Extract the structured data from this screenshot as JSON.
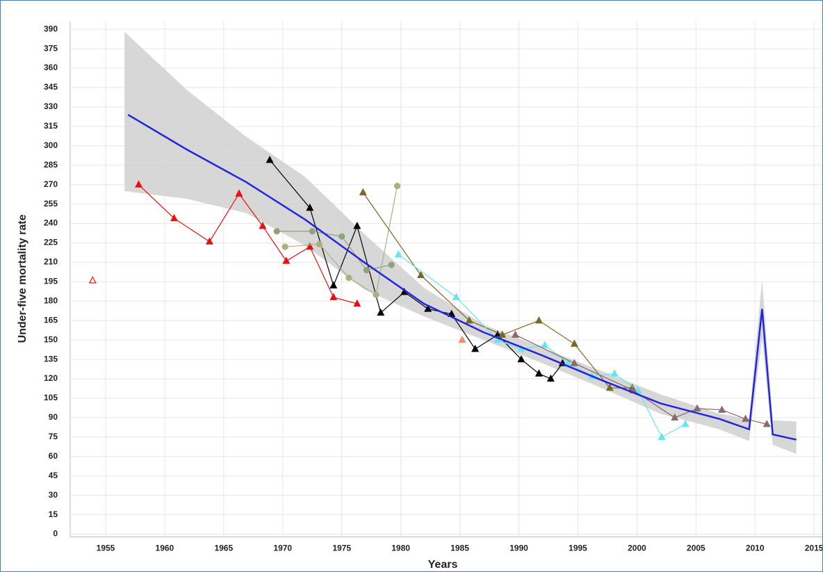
{
  "chart_data": {
    "type": "line",
    "x_label": "Years",
    "y_label": "Under-five mortality rate",
    "xlim": [
      1952,
      2015.7
    ],
    "ylim": [
      -4,
      396
    ],
    "xticks": [
      1955,
      1960,
      1965,
      1970,
      1975,
      1980,
      1985,
      1990,
      1995,
      2000,
      2005,
      2010,
      2015
    ],
    "yticks": [
      0,
      15,
      30,
      45,
      60,
      75,
      90,
      105,
      120,
      135,
      150,
      165,
      180,
      195,
      210,
      225,
      240,
      255,
      270,
      285,
      300,
      315,
      330,
      345,
      360,
      375,
      390
    ],
    "grid": true,
    "band": {
      "color": "#d0d0d0",
      "x": [
        1956.6,
        1961.9,
        1966.9,
        1971.9,
        1976.9,
        1982,
        1987,
        1992,
        1997,
        2002,
        2007,
        2009.5,
        2010.6,
        2011.5,
        2013.5
      ],
      "upper": [
        388,
        343,
        307,
        276,
        232,
        190,
        162,
        144,
        126,
        108,
        93,
        89,
        197,
        88,
        87
      ],
      "lower": [
        265,
        259,
        248,
        223,
        189,
        168,
        150,
        132,
        113,
        93,
        81,
        72,
        151,
        69,
        62
      ]
    },
    "series": [
      {
        "color": "#e81010",
        "marker": "triangle",
        "filled": true,
        "x": [
          1957.8,
          1960.8,
          1963.8,
          1966.3,
          1968.3,
          1970.3,
          1972.3,
          1974.3,
          1976.3
        ],
        "values": [
          270,
          244,
          226,
          263,
          238,
          211,
          222,
          183,
          178
        ]
      },
      {
        "color": "#e81010",
        "marker": "triangle",
        "filled": false,
        "x": [
          1953.9
        ],
        "values": [
          196
        ]
      },
      {
        "color": "#f0906a",
        "marker": "triangle",
        "filled": true,
        "x": [
          1985.2
        ],
        "values": [
          150
        ]
      },
      {
        "color": "#000000",
        "marker": "triangle",
        "filled": true,
        "x": [
          1968.9,
          1972.3,
          1974.3,
          1976.3,
          1978.3,
          1980.3,
          1982.3,
          1984.3,
          1986.3,
          1988.2,
          1990.2,
          1991.7,
          1992.7,
          1993.7
        ],
        "values": [
          289,
          252,
          192,
          238,
          171,
          187,
          174,
          170,
          143,
          154,
          135,
          124,
          120,
          132
        ]
      },
      {
        "color": "#8fa37a",
        "marker": "circle",
        "filled": true,
        "x": [
          1969.5,
          1972.5,
          1975,
          1977.1,
          1979.2
        ],
        "values": [
          234,
          234,
          230,
          204,
          208
        ]
      },
      {
        "color": "#b0ae80",
        "marker": "circle",
        "filled": true,
        "x": [
          1970.2,
          1973.1,
          1975.6,
          1977.9,
          1979.7
        ],
        "values": [
          222,
          224,
          198,
          185,
          269
        ]
      },
      {
        "color": "#7a6828",
        "marker": "triangle",
        "filled": true,
        "x": [
          1976.8,
          1981.7,
          1985.8,
          1988.6,
          1991.7,
          1994.7,
          1997.7,
          1999.6
        ],
        "values": [
          264,
          200,
          165,
          154,
          165,
          147,
          113,
          113
        ]
      },
      {
        "color": "#66e4f0",
        "marker": "triangle",
        "filled": true,
        "x": [
          1979.8,
          1984.7,
          1988.2,
          1990.2,
          1992.2,
          1994.2,
          1996.2,
          1998.1,
          2000.1,
          2002.1,
          2004.1
        ],
        "values": [
          216,
          183,
          150,
          143,
          146,
          132,
          122,
          124,
          111,
          75,
          85
        ]
      },
      {
        "color": "#8a6a6a",
        "marker": "triangle",
        "filled": true,
        "x": [
          1989.7,
          1994.7,
          1999.7,
          2003.2,
          2005.1,
          2007.2,
          2009.2,
          2011
        ],
        "values": [
          154,
          132,
          111,
          90,
          97,
          96,
          89,
          85
        ]
      },
      {
        "color": "#2424dc",
        "marker": "none",
        "width": 2.5,
        "x": [
          1956.9,
          1961.9,
          1966.9,
          1971.9,
          1976.9,
          1981.96,
          1987,
          1992,
          1997,
          2002,
          2007,
          2009.5,
          2010.6,
          2011.5,
          2013.5
        ],
        "values": [
          324,
          297,
          272,
          243,
          210,
          178,
          156,
          138,
          119,
          101,
          89,
          81,
          174,
          77,
          73
        ]
      }
    ]
  }
}
